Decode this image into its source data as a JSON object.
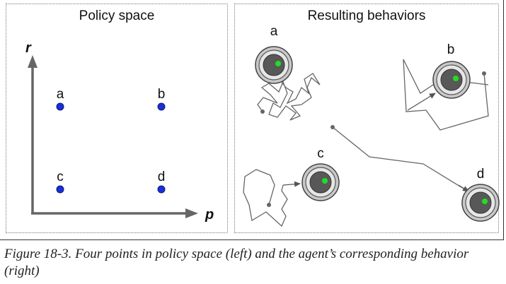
{
  "left_panel": {
    "title": "Policy space",
    "x_axis_label": "p",
    "y_axis_label": "r",
    "points": [
      {
        "label": "a",
        "p": 0,
        "r": 1
      },
      {
        "label": "b",
        "p": 1,
        "r": 1
      },
      {
        "label": "c",
        "p": 0,
        "r": 0
      },
      {
        "label": "d",
        "p": 1,
        "r": 0
      }
    ],
    "point_color": "#1a2fd6"
  },
  "right_panel": {
    "title": "Resulting behaviors",
    "agents": [
      {
        "label": "a"
      },
      {
        "label": "b"
      },
      {
        "label": "c"
      },
      {
        "label": "d"
      }
    ],
    "target_dot_color": "#22dd22"
  },
  "caption": {
    "figure_ref": "Figure 18-3.",
    "text": " Four points in policy space (left) and the agent’s corresponding behavior (right)"
  }
}
